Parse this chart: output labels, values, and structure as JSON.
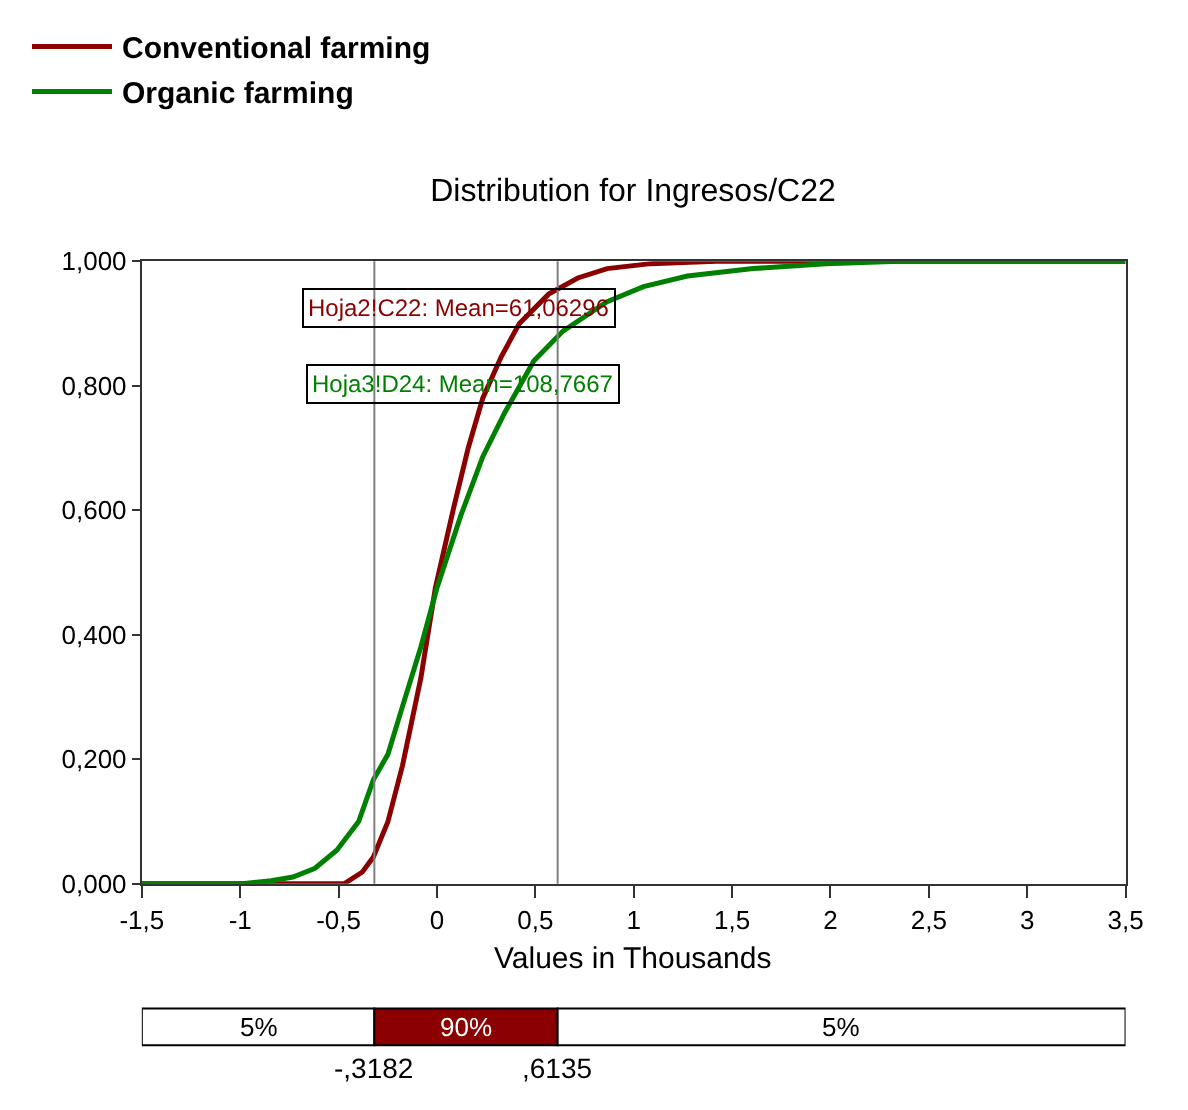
{
  "chart_data": {
    "type": "line",
    "title": "Distribution for Ingresos/C22",
    "xlabel": "Values in Thousands",
    "series": [
      {
        "name": "Conventional farming",
        "color": "#8b0000",
        "x": [
          -1.5,
          -0.472,
          -0.379,
          -0.323,
          -0.249,
          -0.175,
          -0.082,
          -0.008,
          0.085,
          0.159,
          0.233,
          0.326,
          0.419,
          0.568,
          0.716,
          0.865,
          1.087,
          1.42,
          3.5
        ],
        "values": [
          0,
          0,
          0.019,
          0.043,
          0.1,
          0.19,
          0.33,
          0.475,
          0.604,
          0.7,
          0.78,
          0.846,
          0.9,
          0.947,
          0.973,
          0.988,
          0.996,
          1.0,
          1.0
        ]
      },
      {
        "name": "Organic farming",
        "color": "#008000",
        "x": [
          -1.5,
          -0.99,
          -0.843,
          -0.732,
          -0.62,
          -0.509,
          -0.398,
          -0.323,
          -0.249,
          -0.175,
          -0.082,
          0.0,
          0.122,
          0.233,
          0.345,
          0.493,
          0.642,
          0.865,
          1.05,
          1.273,
          1.607,
          1.978,
          2.35,
          3.5
        ],
        "values": [
          0,
          0,
          0.005,
          0.011,
          0.025,
          0.054,
          0.1,
          0.167,
          0.208,
          0.285,
          0.38,
          0.475,
          0.592,
          0.686,
          0.757,
          0.84,
          0.888,
          0.935,
          0.959,
          0.976,
          0.988,
          0.996,
          1.0,
          1.0
        ]
      }
    ],
    "xlim": [
      -1.5,
      3.5
    ],
    "xticks": [
      {
        "value": -1.5,
        "label": "-1,5"
      },
      {
        "value": -1,
        "label": "-1"
      },
      {
        "value": -0.5,
        "label": "-0,5"
      },
      {
        "value": 0,
        "label": "0"
      },
      {
        "value": 0.5,
        "label": "0,5"
      },
      {
        "value": 1,
        "label": "1"
      },
      {
        "value": 1.5,
        "label": "1,5"
      },
      {
        "value": 2,
        "label": "2"
      },
      {
        "value": 2.5,
        "label": "2,5"
      },
      {
        "value": 3,
        "label": "3"
      },
      {
        "value": 3.5,
        "label": "3,5"
      }
    ],
    "ylim": [
      0,
      1
    ],
    "yticks": [
      {
        "value": 0,
        "label": "0,000"
      },
      {
        "value": 0.2,
        "label": "0,200"
      },
      {
        "value": 0.4,
        "label": "0,400"
      },
      {
        "value": 0.6,
        "label": "0,600"
      },
      {
        "value": 0.8,
        "label": "0,800"
      },
      {
        "value": 1,
        "label": "1,000"
      }
    ],
    "ref_lines": [
      {
        "axis": "x",
        "value": -0.3182,
        "color": "#808080"
      },
      {
        "axis": "x",
        "value": 0.6135,
        "color": "#808080"
      }
    ],
    "annotations": [
      "Hoja2!C22: Mean=61,06296",
      "Hoja3!D24: Mean=108,7667",
      "5%",
      "90%",
      "5%",
      "-,3182",
      ",6135"
    ],
    "legend": "top left",
    "line_style": "solid",
    "marker": "none"
  }
}
